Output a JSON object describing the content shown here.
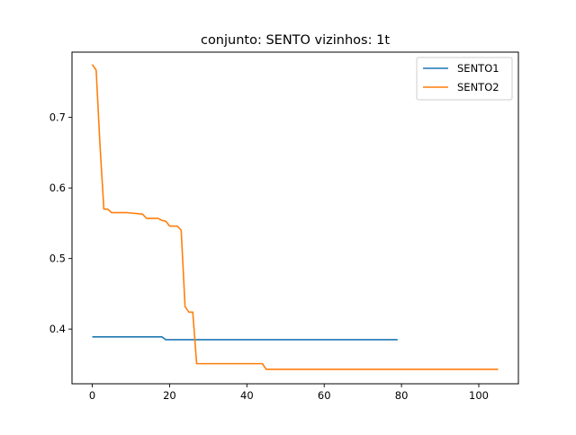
{
  "chart_data": {
    "type": "line",
    "title": "conjunto: SENTO vizinhos: 1t",
    "xlabel": "",
    "ylabel": "",
    "xlim": [
      -5.25,
      110.25
    ],
    "ylim": [
      0.3225,
      0.7925
    ],
    "xticks": [
      0,
      20,
      40,
      60,
      80,
      100
    ],
    "yticks": [
      0.4,
      0.5,
      0.6,
      0.7
    ],
    "grid": false,
    "legend_position": "top-right",
    "series": [
      {
        "name": "SENTO1",
        "color": "#1f77b4",
        "points": [
          [
            0,
            0.389
          ],
          [
            18,
            0.389
          ],
          [
            19,
            0.385
          ],
          [
            79,
            0.385
          ]
        ]
      },
      {
        "name": "SENTO2",
        "color": "#ff7f0e",
        "points": [
          [
            0,
            0.775
          ],
          [
            1,
            0.767
          ],
          [
            2,
            0.66
          ],
          [
            3,
            0.57
          ],
          [
            4,
            0.57
          ],
          [
            5,
            0.565
          ],
          [
            9,
            0.565
          ],
          [
            13,
            0.563
          ],
          [
            14,
            0.557
          ],
          [
            17,
            0.557
          ],
          [
            18,
            0.554
          ],
          [
            19,
            0.553
          ],
          [
            20,
            0.546
          ],
          [
            22,
            0.546
          ],
          [
            23,
            0.54
          ],
          [
            24,
            0.432
          ],
          [
            25,
            0.424
          ],
          [
            26,
            0.424
          ],
          [
            27,
            0.351
          ],
          [
            44,
            0.351
          ],
          [
            45,
            0.343
          ],
          [
            105,
            0.343
          ]
        ]
      }
    ]
  }
}
